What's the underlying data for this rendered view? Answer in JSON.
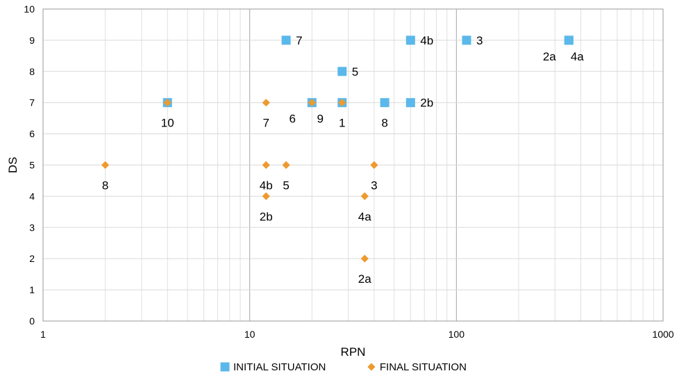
{
  "chart_data": {
    "type": "scatter",
    "title": "",
    "xlabel": "RPN",
    "ylabel": "DS",
    "x_scale": "log",
    "xlim": [
      1,
      1000
    ],
    "ylim": [
      0,
      10
    ],
    "x_ticks": [
      "1",
      "10",
      "100",
      "1000"
    ],
    "y_ticks": [
      "0",
      "1",
      "2",
      "3",
      "4",
      "5",
      "6",
      "7",
      "8",
      "9",
      "10"
    ],
    "grid": true,
    "legend_position": "bottom",
    "series": [
      {
        "name": "INITIAL SITUATION",
        "marker": "square",
        "color": "#5bb8ea",
        "points": [
          {
            "x": 4,
            "y": 7,
            "label": "10"
          },
          {
            "x": 15,
            "y": 9,
            "label": "7"
          },
          {
            "x": 20,
            "y": 7,
            "label": "6"
          },
          {
            "x": 28,
            "y": 7,
            "label": "1"
          },
          {
            "x": 28,
            "y": 8,
            "label": "5"
          },
          {
            "x": 45,
            "y": 7,
            "label": "8"
          },
          {
            "x": 60,
            "y": 9,
            "label": "4b"
          },
          {
            "x": 60,
            "y": 7,
            "label": "2b"
          },
          {
            "x": 112,
            "y": 9,
            "label": "3"
          },
          {
            "x": 350,
            "y": 9,
            "label": "4a"
          },
          {
            "x": 350,
            "y": 9,
            "label": "2a"
          }
        ]
      },
      {
        "name": "FINAL SITUATION",
        "marker": "diamond",
        "color": "#ed9a2e",
        "points": [
          {
            "x": 2,
            "y": 5,
            "label": "8"
          },
          {
            "x": 4,
            "y": 7,
            "label": "10"
          },
          {
            "x": 12,
            "y": 7,
            "label": "7"
          },
          {
            "x": 20,
            "y": 7,
            "label": "9"
          },
          {
            "x": 28,
            "y": 7,
            "label": ""
          },
          {
            "x": 12,
            "y": 5,
            "label": "4b"
          },
          {
            "x": 15,
            "y": 5,
            "label": "5"
          },
          {
            "x": 12,
            "y": 4,
            "label": "2b"
          },
          {
            "x": 40,
            "y": 5,
            "label": "3"
          },
          {
            "x": 36,
            "y": 4,
            "label": "4a"
          },
          {
            "x": 36,
            "y": 2,
            "label": "2a"
          }
        ]
      }
    ]
  }
}
